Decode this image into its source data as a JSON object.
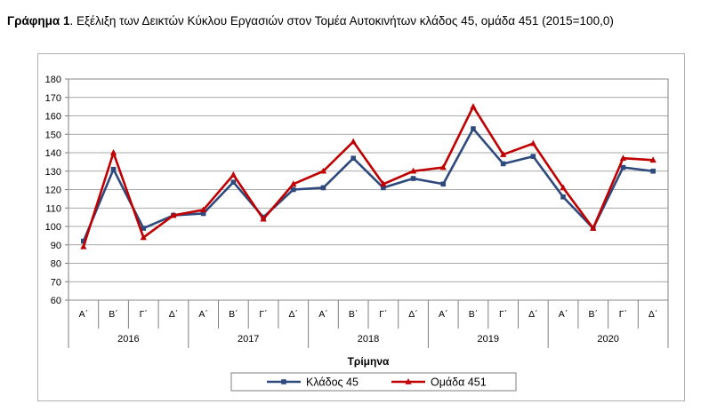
{
  "figure": {
    "title_bold": "Γράφημα 1",
    "title_rest": ". Εξέλιξη των Δεικτών Κύκλου Εργασιών στον Τομέα Αυτοκινήτων κλάδος 45, ομάδα 451 (2015=100,0)"
  },
  "chart_data": {
    "type": "line",
    "xlabel": "Τρίμηνα",
    "ylabel": "",
    "ylim": [
      60,
      180
    ],
    "yticks": [
      60,
      70,
      80,
      90,
      100,
      110,
      120,
      130,
      140,
      150,
      160,
      170,
      180
    ],
    "grid": true,
    "legend_position": "bottom",
    "quarters": [
      "Α΄",
      "Β΄",
      "Γ΄",
      "Δ΄",
      "Α΄",
      "Β΄",
      "Γ΄",
      "Δ΄",
      "Α΄",
      "Β΄",
      "Γ΄",
      "Δ΄",
      "Α΄",
      "Β΄",
      "Γ΄",
      "Δ΄",
      "Α΄",
      "Β΄",
      "Γ΄",
      "Δ΄"
    ],
    "years": [
      "2016",
      "2017",
      "2018",
      "2019",
      "2020"
    ],
    "series": [
      {
        "name": "Κλάδος 45",
        "color": "#2e4a7d",
        "marker": "square",
        "values": [
          92,
          131,
          99,
          106,
          107,
          124,
          105,
          120,
          121,
          137,
          121,
          126,
          123,
          153,
          134,
          138,
          116,
          99,
          132,
          130
        ]
      },
      {
        "name": "Ομάδα 451",
        "color": "#c00000",
        "marker": "triangle",
        "values": [
          89,
          140,
          94,
          106,
          109,
          128,
          104,
          123,
          130,
          146,
          123,
          130,
          132,
          165,
          139,
          145,
          121,
          99,
          137,
          136
        ]
      }
    ]
  }
}
